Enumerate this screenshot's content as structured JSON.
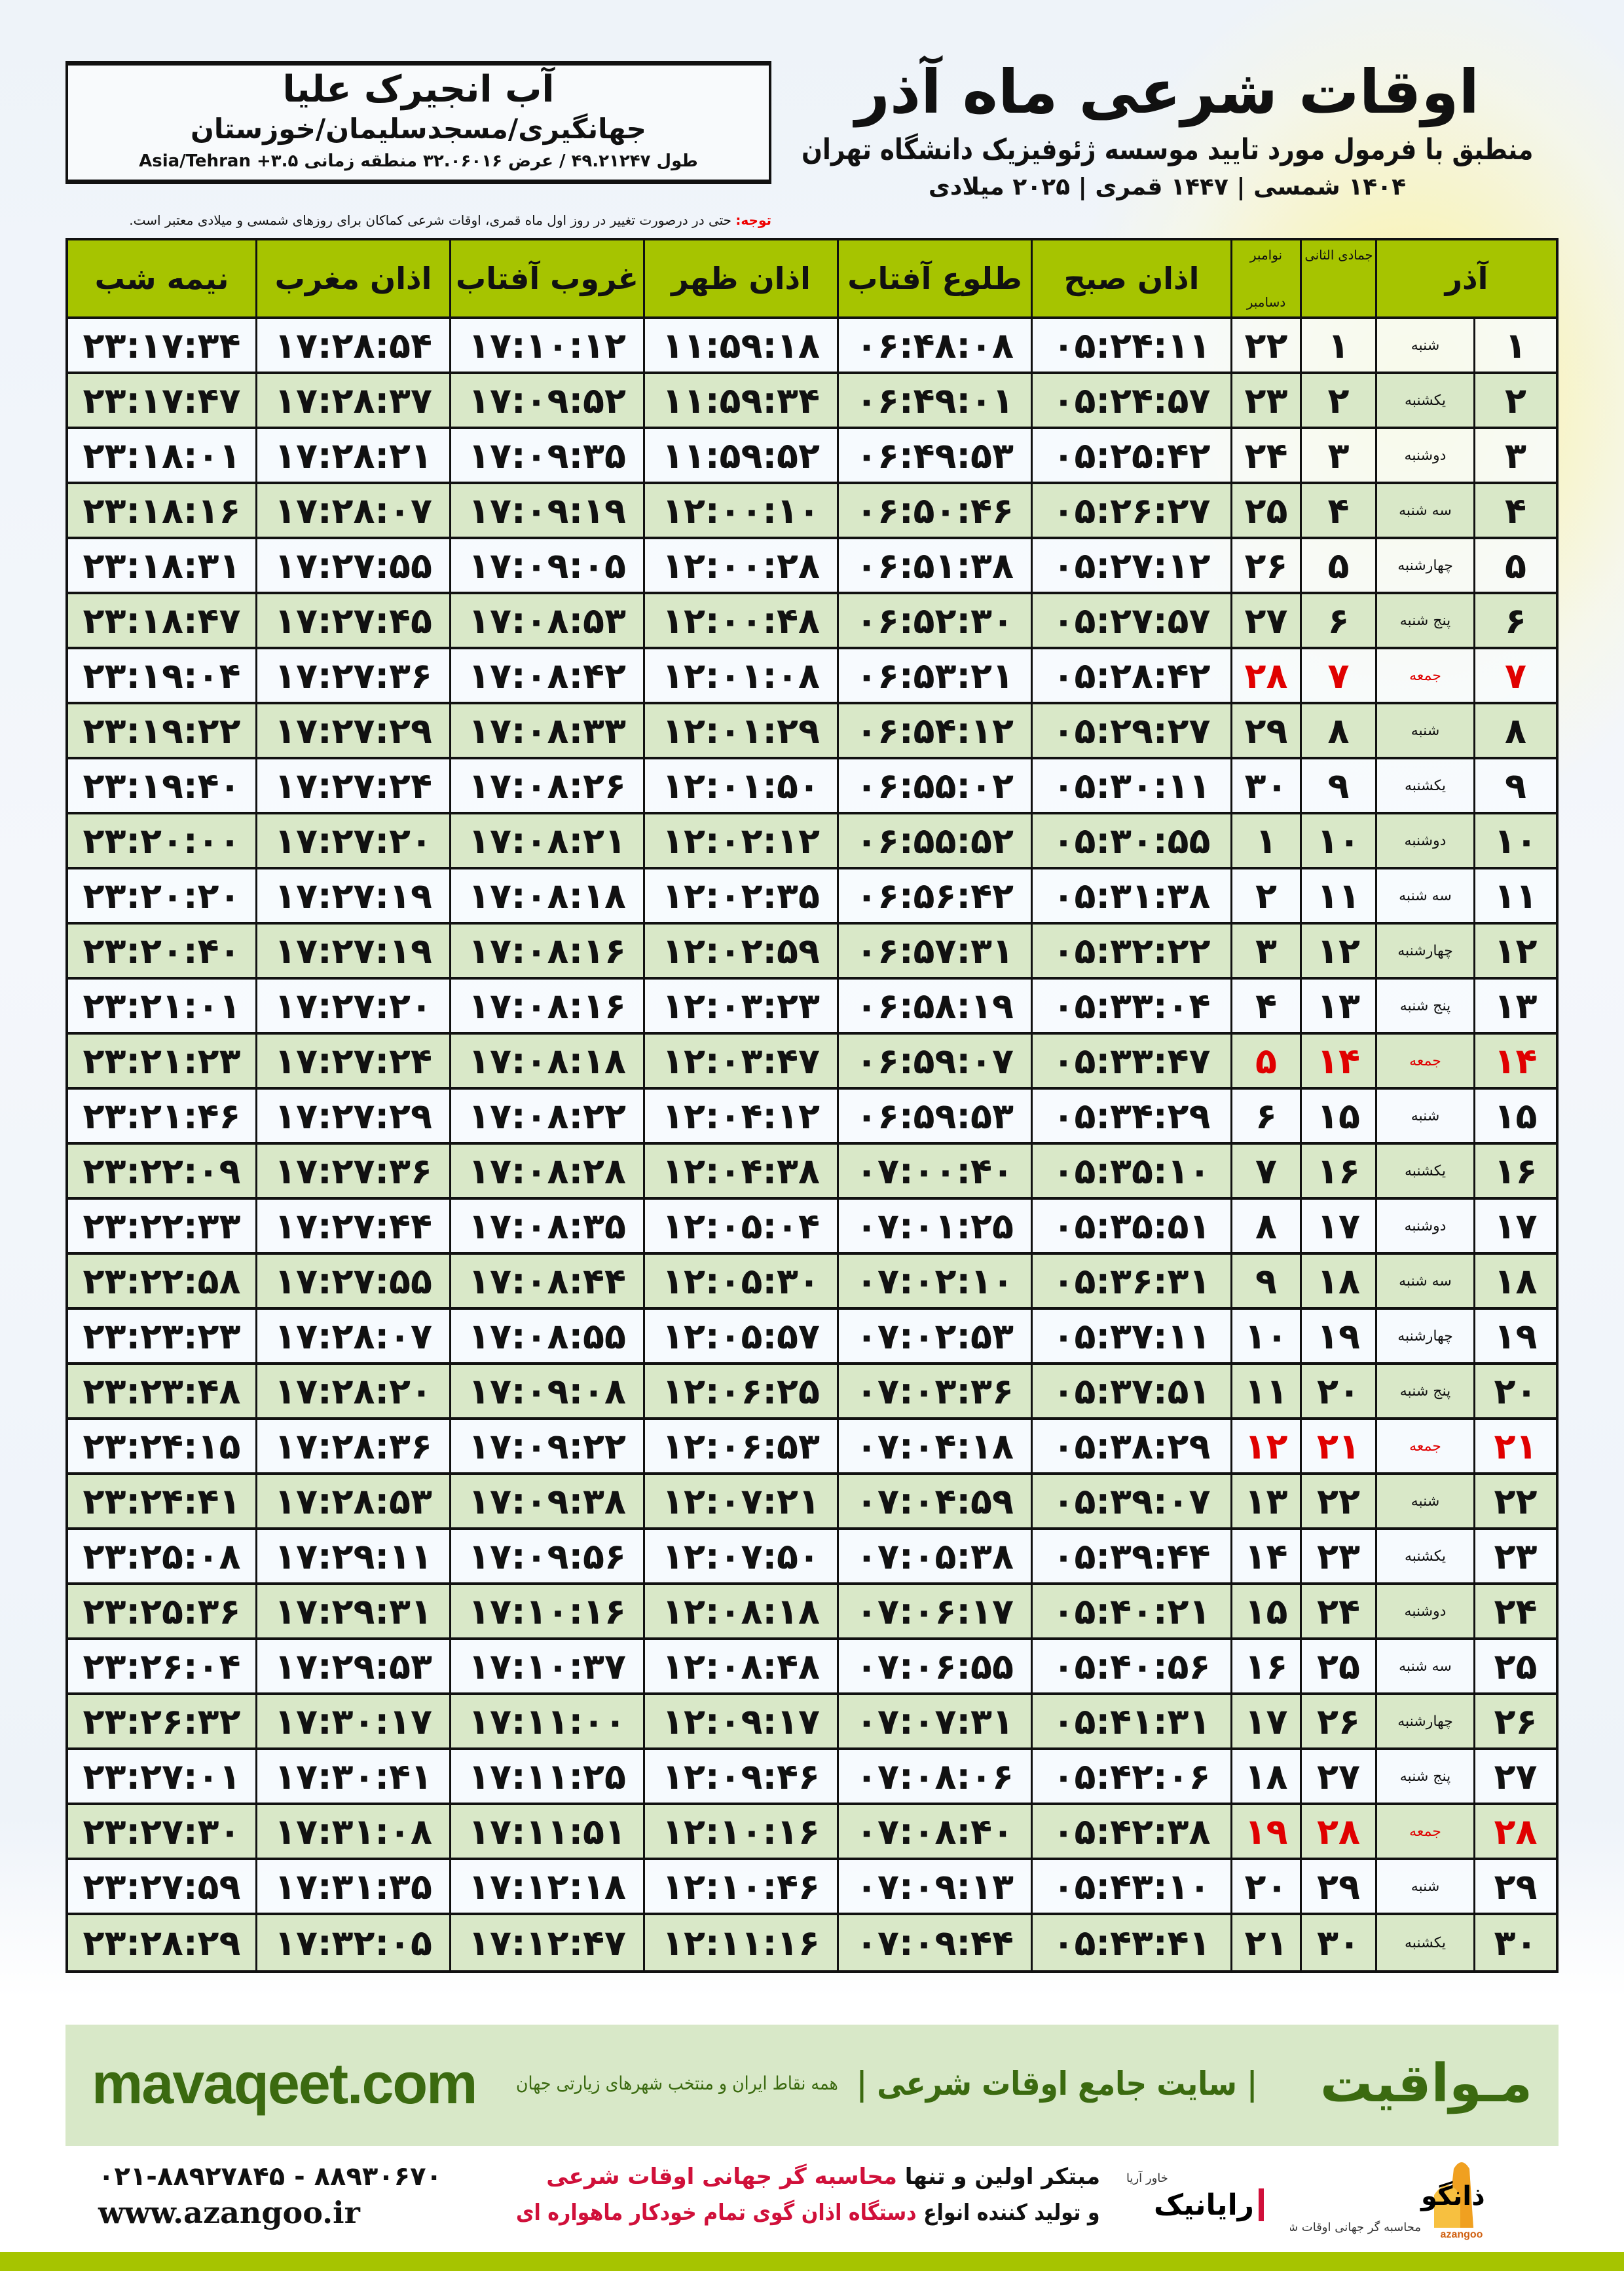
{
  "location": {
    "name": "آب انجیرک علیا",
    "path": "جهانگیری/مسجدسلیمان/خوزستان",
    "coords": "طول ۴۹.۲۱۲۴۷ / عرض ۳۲.۰۶۰۱۶ منطقه زمانی Asia/Tehran +۳.۵"
  },
  "header": {
    "title": "اوقات شرعی ماه آذر",
    "subtitle": "منطبق با فرمول مورد تایید موسسه ژئوفیزیک دانشگاه تهران",
    "dates": "۱۴۰۴ شمسی | ۱۴۴۷ قمری | ۲۰۲۵ میلادی",
    "note_label": "توجه:",
    "note_text": " حتی در درصورت تغییر در روز اول ماه قمری، اوقات شرعی کماکان برای روزهای شمسی و میلادی معتبر است."
  },
  "table": {
    "columns": {
      "day": "آذر",
      "hijri": "جمادی الثانی",
      "greg_top": "نوامبر",
      "greg_bottom": "دسامبر",
      "fajr": "اذان صبح",
      "sunrise": "طلوع آفتاب",
      "dhuhr": "اذان ظهر",
      "sunset": "غروب آفتاب",
      "maghrib": "اذان مغرب",
      "midnight": "نیمه شب"
    },
    "holiday_color": "#e00000",
    "rows": [
      {
        "day": "۱",
        "weekday": "شنبه",
        "hijri": "۱",
        "greg": "۲۲",
        "fajr": "۰۵:۲۴:۱۱",
        "sunrise": "۰۶:۴۸:۰۸",
        "dhuhr": "۱۱:۵۹:۱۸",
        "sunset": "۱۷:۱۰:۱۲",
        "maghrib": "۱۷:۲۸:۵۴",
        "midnight": "۲۳:۱۷:۳۴"
      },
      {
        "day": "۲",
        "weekday": "یکشنبه",
        "hijri": "۲",
        "greg": "۲۳",
        "fajr": "۰۵:۲۴:۵۷",
        "sunrise": "۰۶:۴۹:۰۱",
        "dhuhr": "۱۱:۵۹:۳۴",
        "sunset": "۱۷:۰۹:۵۲",
        "maghrib": "۱۷:۲۸:۳۷",
        "midnight": "۲۳:۱۷:۴۷"
      },
      {
        "day": "۳",
        "weekday": "دوشنبه",
        "hijri": "۳",
        "greg": "۲۴",
        "fajr": "۰۵:۲۵:۴۲",
        "sunrise": "۰۶:۴۹:۵۳",
        "dhuhr": "۱۱:۵۹:۵۲",
        "sunset": "۱۷:۰۹:۳۵",
        "maghrib": "۱۷:۲۸:۲۱",
        "midnight": "۲۳:۱۸:۰۱"
      },
      {
        "day": "۴",
        "weekday": "سه شنبه",
        "hijri": "۴",
        "greg": "۲۵",
        "fajr": "۰۵:۲۶:۲۷",
        "sunrise": "۰۶:۵۰:۴۶",
        "dhuhr": "۱۲:۰۰:۱۰",
        "sunset": "۱۷:۰۹:۱۹",
        "maghrib": "۱۷:۲۸:۰۷",
        "midnight": "۲۳:۱۸:۱۶"
      },
      {
        "day": "۵",
        "weekday": "چهارشنبه",
        "hijri": "۵",
        "greg": "۲۶",
        "fajr": "۰۵:۲۷:۱۲",
        "sunrise": "۰۶:۵۱:۳۸",
        "dhuhr": "۱۲:۰۰:۲۸",
        "sunset": "۱۷:۰۹:۰۵",
        "maghrib": "۱۷:۲۷:۵۵",
        "midnight": "۲۳:۱۸:۳۱"
      },
      {
        "day": "۶",
        "weekday": "پنج شنبه",
        "hijri": "۶",
        "greg": "۲۷",
        "fajr": "۰۵:۲۷:۵۷",
        "sunrise": "۰۶:۵۲:۳۰",
        "dhuhr": "۱۲:۰۰:۴۸",
        "sunset": "۱۷:۰۸:۵۳",
        "maghrib": "۱۷:۲۷:۴۵",
        "midnight": "۲۳:۱۸:۴۷"
      },
      {
        "day": "۷",
        "weekday": "جمعه",
        "hijri": "۷",
        "greg": "۲۸",
        "fajr": "۰۵:۲۸:۴۲",
        "sunrise": "۰۶:۵۳:۲۱",
        "dhuhr": "۱۲:۰۱:۰۸",
        "sunset": "۱۷:۰۸:۴۲",
        "maghrib": "۱۷:۲۷:۳۶",
        "midnight": "۲۳:۱۹:۰۴",
        "holiday": true
      },
      {
        "day": "۸",
        "weekday": "شنبه",
        "hijri": "۸",
        "greg": "۲۹",
        "fajr": "۰۵:۲۹:۲۷",
        "sunrise": "۰۶:۵۴:۱۲",
        "dhuhr": "۱۲:۰۱:۲۹",
        "sunset": "۱۷:۰۸:۳۳",
        "maghrib": "۱۷:۲۷:۲۹",
        "midnight": "۲۳:۱۹:۲۲"
      },
      {
        "day": "۹",
        "weekday": "یکشنبه",
        "hijri": "۹",
        "greg": "۳۰",
        "fajr": "۰۵:۳۰:۱۱",
        "sunrise": "۰۶:۵۵:۰۲",
        "dhuhr": "۱۲:۰۱:۵۰",
        "sunset": "۱۷:۰۸:۲۶",
        "maghrib": "۱۷:۲۷:۲۴",
        "midnight": "۲۳:۱۹:۴۰"
      },
      {
        "day": "۱۰",
        "weekday": "دوشنبه",
        "hijri": "۱۰",
        "greg": "۱",
        "fajr": "۰۵:۳۰:۵۵",
        "sunrise": "۰۶:۵۵:۵۲",
        "dhuhr": "۱۲:۰۲:۱۲",
        "sunset": "۱۷:۰۸:۲۱",
        "maghrib": "۱۷:۲۷:۲۰",
        "midnight": "۲۳:۲۰:۰۰"
      },
      {
        "day": "۱۱",
        "weekday": "سه شنبه",
        "hijri": "۱۱",
        "greg": "۲",
        "fajr": "۰۵:۳۱:۳۸",
        "sunrise": "۰۶:۵۶:۴۲",
        "dhuhr": "۱۲:۰۲:۳۵",
        "sunset": "۱۷:۰۸:۱۸",
        "maghrib": "۱۷:۲۷:۱۹",
        "midnight": "۲۳:۲۰:۲۰"
      },
      {
        "day": "۱۲",
        "weekday": "چهارشنبه",
        "hijri": "۱۲",
        "greg": "۳",
        "fajr": "۰۵:۳۲:۲۲",
        "sunrise": "۰۶:۵۷:۳۱",
        "dhuhr": "۱۲:۰۲:۵۹",
        "sunset": "۱۷:۰۸:۱۶",
        "maghrib": "۱۷:۲۷:۱۹",
        "midnight": "۲۳:۲۰:۴۰"
      },
      {
        "day": "۱۳",
        "weekday": "پنج شنبه",
        "hijri": "۱۳",
        "greg": "۴",
        "fajr": "۰۵:۳۳:۰۴",
        "sunrise": "۰۶:۵۸:۱۹",
        "dhuhr": "۱۲:۰۳:۲۳",
        "sunset": "۱۷:۰۸:۱۶",
        "maghrib": "۱۷:۲۷:۲۰",
        "midnight": "۲۳:۲۱:۰۱"
      },
      {
        "day": "۱۴",
        "weekday": "جمعه",
        "hijri": "۱۴",
        "greg": "۵",
        "fajr": "۰۵:۳۳:۴۷",
        "sunrise": "۰۶:۵۹:۰۷",
        "dhuhr": "۱۲:۰۳:۴۷",
        "sunset": "۱۷:۰۸:۱۸",
        "maghrib": "۱۷:۲۷:۲۴",
        "midnight": "۲۳:۲۱:۲۳",
        "holiday": true
      },
      {
        "day": "۱۵",
        "weekday": "شنبه",
        "hijri": "۱۵",
        "greg": "۶",
        "fajr": "۰۵:۳۴:۲۹",
        "sunrise": "۰۶:۵۹:۵۳",
        "dhuhr": "۱۲:۰۴:۱۲",
        "sunset": "۱۷:۰۸:۲۲",
        "maghrib": "۱۷:۲۷:۲۹",
        "midnight": "۲۳:۲۱:۴۶"
      },
      {
        "day": "۱۶",
        "weekday": "یکشنبه",
        "hijri": "۱۶",
        "greg": "۷",
        "fajr": "۰۵:۳۵:۱۰",
        "sunrise": "۰۷:۰۰:۴۰",
        "dhuhr": "۱۲:۰۴:۳۸",
        "sunset": "۱۷:۰۸:۲۸",
        "maghrib": "۱۷:۲۷:۳۶",
        "midnight": "۲۳:۲۲:۰۹"
      },
      {
        "day": "۱۷",
        "weekday": "دوشنبه",
        "hijri": "۱۷",
        "greg": "۸",
        "fajr": "۰۵:۳۵:۵۱",
        "sunrise": "۰۷:۰۱:۲۵",
        "dhuhr": "۱۲:۰۵:۰۴",
        "sunset": "۱۷:۰۸:۳۵",
        "maghrib": "۱۷:۲۷:۴۴",
        "midnight": "۲۳:۲۲:۳۳"
      },
      {
        "day": "۱۸",
        "weekday": "سه شنبه",
        "hijri": "۱۸",
        "greg": "۹",
        "fajr": "۰۵:۳۶:۳۱",
        "sunrise": "۰۷:۰۲:۱۰",
        "dhuhr": "۱۲:۰۵:۳۰",
        "sunset": "۱۷:۰۸:۴۴",
        "maghrib": "۱۷:۲۷:۵۵",
        "midnight": "۲۳:۲۲:۵۸"
      },
      {
        "day": "۱۹",
        "weekday": "چهارشنبه",
        "hijri": "۱۹",
        "greg": "۱۰",
        "fajr": "۰۵:۳۷:۱۱",
        "sunrise": "۰۷:۰۲:۵۳",
        "dhuhr": "۱۲:۰۵:۵۷",
        "sunset": "۱۷:۰۸:۵۵",
        "maghrib": "۱۷:۲۸:۰۷",
        "midnight": "۲۳:۲۳:۲۳"
      },
      {
        "day": "۲۰",
        "weekday": "پنج شنبه",
        "hijri": "۲۰",
        "greg": "۱۱",
        "fajr": "۰۵:۳۷:۵۱",
        "sunrise": "۰۷:۰۳:۳۶",
        "dhuhr": "۱۲:۰۶:۲۵",
        "sunset": "۱۷:۰۹:۰۸",
        "maghrib": "۱۷:۲۸:۲۰",
        "midnight": "۲۳:۲۳:۴۸"
      },
      {
        "day": "۲۱",
        "weekday": "جمعه",
        "hijri": "۲۱",
        "greg": "۱۲",
        "fajr": "۰۵:۳۸:۲۹",
        "sunrise": "۰۷:۰۴:۱۸",
        "dhuhr": "۱۲:۰۶:۵۳",
        "sunset": "۱۷:۰۹:۲۲",
        "maghrib": "۱۷:۲۸:۳۶",
        "midnight": "۲۳:۲۴:۱۵",
        "holiday": true
      },
      {
        "day": "۲۲",
        "weekday": "شنبه",
        "hijri": "۲۲",
        "greg": "۱۳",
        "fajr": "۰۵:۳۹:۰۷",
        "sunrise": "۰۷:۰۴:۵۹",
        "dhuhr": "۱۲:۰۷:۲۱",
        "sunset": "۱۷:۰۹:۳۸",
        "maghrib": "۱۷:۲۸:۵۳",
        "midnight": "۲۳:۲۴:۴۱"
      },
      {
        "day": "۲۳",
        "weekday": "یکشنبه",
        "hijri": "۲۳",
        "greg": "۱۴",
        "fajr": "۰۵:۳۹:۴۴",
        "sunrise": "۰۷:۰۵:۳۸",
        "dhuhr": "۱۲:۰۷:۵۰",
        "sunset": "۱۷:۰۹:۵۶",
        "maghrib": "۱۷:۲۹:۱۱",
        "midnight": "۲۳:۲۵:۰۸"
      },
      {
        "day": "۲۴",
        "weekday": "دوشنبه",
        "hijri": "۲۴",
        "greg": "۱۵",
        "fajr": "۰۵:۴۰:۲۱",
        "sunrise": "۰۷:۰۶:۱۷",
        "dhuhr": "۱۲:۰۸:۱۸",
        "sunset": "۱۷:۱۰:۱۶",
        "maghrib": "۱۷:۲۹:۳۱",
        "midnight": "۲۳:۲۵:۳۶"
      },
      {
        "day": "۲۵",
        "weekday": "سه شنبه",
        "hijri": "۲۵",
        "greg": "۱۶",
        "fajr": "۰۵:۴۰:۵۶",
        "sunrise": "۰۷:۰۶:۵۵",
        "dhuhr": "۱۲:۰۸:۴۸",
        "sunset": "۱۷:۱۰:۳۷",
        "maghrib": "۱۷:۲۹:۵۳",
        "midnight": "۲۳:۲۶:۰۴"
      },
      {
        "day": "۲۶",
        "weekday": "چهارشنبه",
        "hijri": "۲۶",
        "greg": "۱۷",
        "fajr": "۰۵:۴۱:۳۱",
        "sunrise": "۰۷:۰۷:۳۱",
        "dhuhr": "۱۲:۰۹:۱۷",
        "sunset": "۱۷:۱۱:۰۰",
        "maghrib": "۱۷:۳۰:۱۷",
        "midnight": "۲۳:۲۶:۳۲"
      },
      {
        "day": "۲۷",
        "weekday": "پنج شنبه",
        "hijri": "۲۷",
        "greg": "۱۸",
        "fajr": "۰۵:۴۲:۰۶",
        "sunrise": "۰۷:۰۸:۰۶",
        "dhuhr": "۱۲:۰۹:۴۶",
        "sunset": "۱۷:۱۱:۲۵",
        "maghrib": "۱۷:۳۰:۴۱",
        "midnight": "۲۳:۲۷:۰۱"
      },
      {
        "day": "۲۸",
        "weekday": "جمعه",
        "hijri": "۲۸",
        "greg": "۱۹",
        "fajr": "۰۵:۴۲:۳۸",
        "sunrise": "۰۷:۰۸:۴۰",
        "dhuhr": "۱۲:۱۰:۱۶",
        "sunset": "۱۷:۱۱:۵۱",
        "maghrib": "۱۷:۳۱:۰۸",
        "midnight": "۲۳:۲۷:۳۰",
        "holiday": true
      },
      {
        "day": "۲۹",
        "weekday": "شنبه",
        "hijri": "۲۹",
        "greg": "۲۰",
        "fajr": "۰۵:۴۳:۱۰",
        "sunrise": "۰۷:۰۹:۱۳",
        "dhuhr": "۱۲:۱۰:۴۶",
        "sunset": "۱۷:۱۲:۱۸",
        "maghrib": "۱۷:۳۱:۳۵",
        "midnight": "۲۳:۲۷:۵۹"
      },
      {
        "day": "۳۰",
        "weekday": "یکشنبه",
        "hijri": "۳۰",
        "greg": "۲۱",
        "fajr": "۰۵:۴۳:۴۱",
        "sunrise": "۰۷:۰۹:۴۴",
        "dhuhr": "۱۲:۱۱:۱۶",
        "sunset": "۱۷:۱۲:۴۷",
        "maghrib": "۱۷:۳۲:۰۵",
        "midnight": "۲۳:۲۸:۲۹"
      }
    ]
  },
  "footer": {
    "brand": "مـواقیت",
    "slogan": "| سایت جامع اوقات شرعی |",
    "slogan2": "همه نقاط ایران و منتخب شهرهای زیارتی جهان",
    "site": "mavaqeet.com",
    "ad_line1_a": "مبتکر اولین و تنها ",
    "ad_line1_b": "محاسبه گر جهانی اوقات شرعی",
    "ad_line2_a": "و تولید کننده انواع ",
    "ad_line2_b": "دستگاه اذان گوی تمام خودکار ماهواره ای",
    "phone": "۰۲۱-۸۸۹۲۷۸۴۵ - ۸۸۹۳۰۶۷۰",
    "web": "www.azangoo.ir",
    "logo_azangoo": "اذانگو اتوماتیک azangoo",
    "logo_rayanik": "رایانیک خاور آریا",
    "brand_color": "#3b6a10",
    "accent_color": "#a6c400"
  }
}
